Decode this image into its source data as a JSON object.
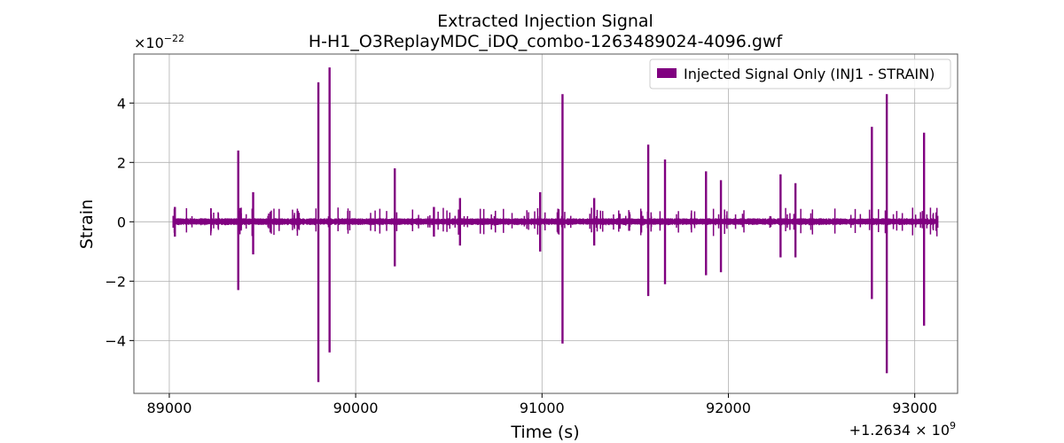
{
  "chart_data": {
    "type": "line",
    "title": "Extracted Injection Signal",
    "subtitle": "H-H1_O3ReplayMDC_iDQ_combo-1263489024-4096.gwf",
    "xlabel": "Time (s)",
    "ylabel": "Strain",
    "x_offset_label": "+1.2634 × 10",
    "x_offset_exp": "9",
    "y_scale_label": "×10",
    "y_scale_exp": "−22",
    "xlim": [
      88810,
      93230
    ],
    "ylim": [
      -5.78,
      5.65
    ],
    "x_ticks": [
      89000,
      90000,
      91000,
      92000,
      93000
    ],
    "x_tick_labels": [
      "89000",
      "90000",
      "91000",
      "92000",
      "93000"
    ],
    "y_ticks": [
      -4,
      -2,
      0,
      2,
      4
    ],
    "y_tick_labels": [
      "−4",
      "−2",
      "0",
      "2",
      "4"
    ],
    "grid": true,
    "legend_position": "top-right",
    "color": "#800080",
    "series": [
      {
        "name": "Injected Signal Only (INJ1 - STRAIN)",
        "data_range": [
          89024,
          93120
        ],
        "baseline_amplitude": 0.12,
        "spikes": [
          {
            "t": 89030,
            "max": 0.5,
            "min": -0.5
          },
          {
            "t": 89370,
            "max": 2.4,
            "min": -2.3
          },
          {
            "t": 89450,
            "max": 1.0,
            "min": -1.1
          },
          {
            "t": 89800,
            "max": 4.7,
            "min": -5.4
          },
          {
            "t": 89860,
            "max": 5.2,
            "min": -4.4
          },
          {
            "t": 90210,
            "max": 1.8,
            "min": -1.5
          },
          {
            "t": 90420,
            "max": 0.5,
            "min": -0.5
          },
          {
            "t": 90560,
            "max": 0.8,
            "min": -0.8
          },
          {
            "t": 90990,
            "max": 1.0,
            "min": -1.0
          },
          {
            "t": 91110,
            "max": 4.3,
            "min": -4.1
          },
          {
            "t": 91280,
            "max": 0.8,
            "min": -0.8
          },
          {
            "t": 91570,
            "max": 2.6,
            "min": -2.5
          },
          {
            "t": 91660,
            "max": 2.1,
            "min": -2.1
          },
          {
            "t": 91880,
            "max": 1.7,
            "min": -1.8
          },
          {
            "t": 91960,
            "max": 1.4,
            "min": -1.7
          },
          {
            "t": 92280,
            "max": 1.6,
            "min": -1.2
          },
          {
            "t": 92360,
            "max": 1.3,
            "min": -1.2
          },
          {
            "t": 92770,
            "max": 3.2,
            "min": -2.6
          },
          {
            "t": 92850,
            "max": 4.3,
            "min": -5.1
          },
          {
            "t": 93050,
            "max": 3.0,
            "min": -3.5
          }
        ]
      }
    ]
  }
}
